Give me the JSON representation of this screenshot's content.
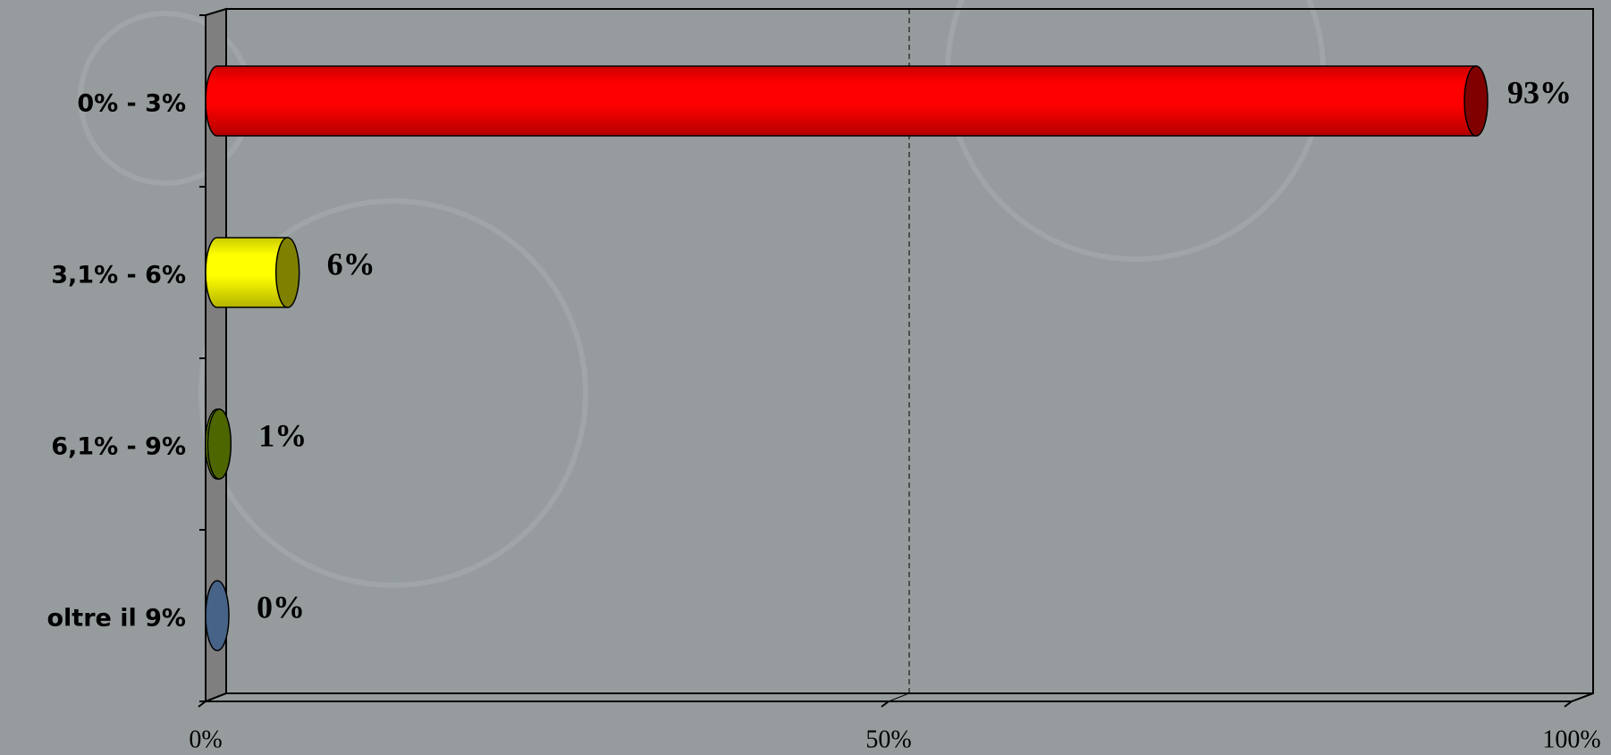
{
  "chart_data": {
    "type": "bar",
    "orientation": "horizontal",
    "categories": [
      "0% - 3%",
      "3,1% - 6%",
      "6,1% - 9%",
      "oltre il 9%"
    ],
    "values": [
      93,
      6,
      1,
      0
    ],
    "value_labels": [
      "93%",
      "6%",
      "1%",
      "0%"
    ],
    "colors": [
      "#ff0000",
      "#ffff00",
      "#99cc00",
      "#4f6e96"
    ],
    "xlim": [
      0,
      100
    ],
    "xticks": [
      {
        "value": 0,
        "label": "0%"
      },
      {
        "value": 50,
        "label": "50%"
      },
      {
        "value": 100,
        "label": "100%"
      }
    ],
    "grid": true
  }
}
